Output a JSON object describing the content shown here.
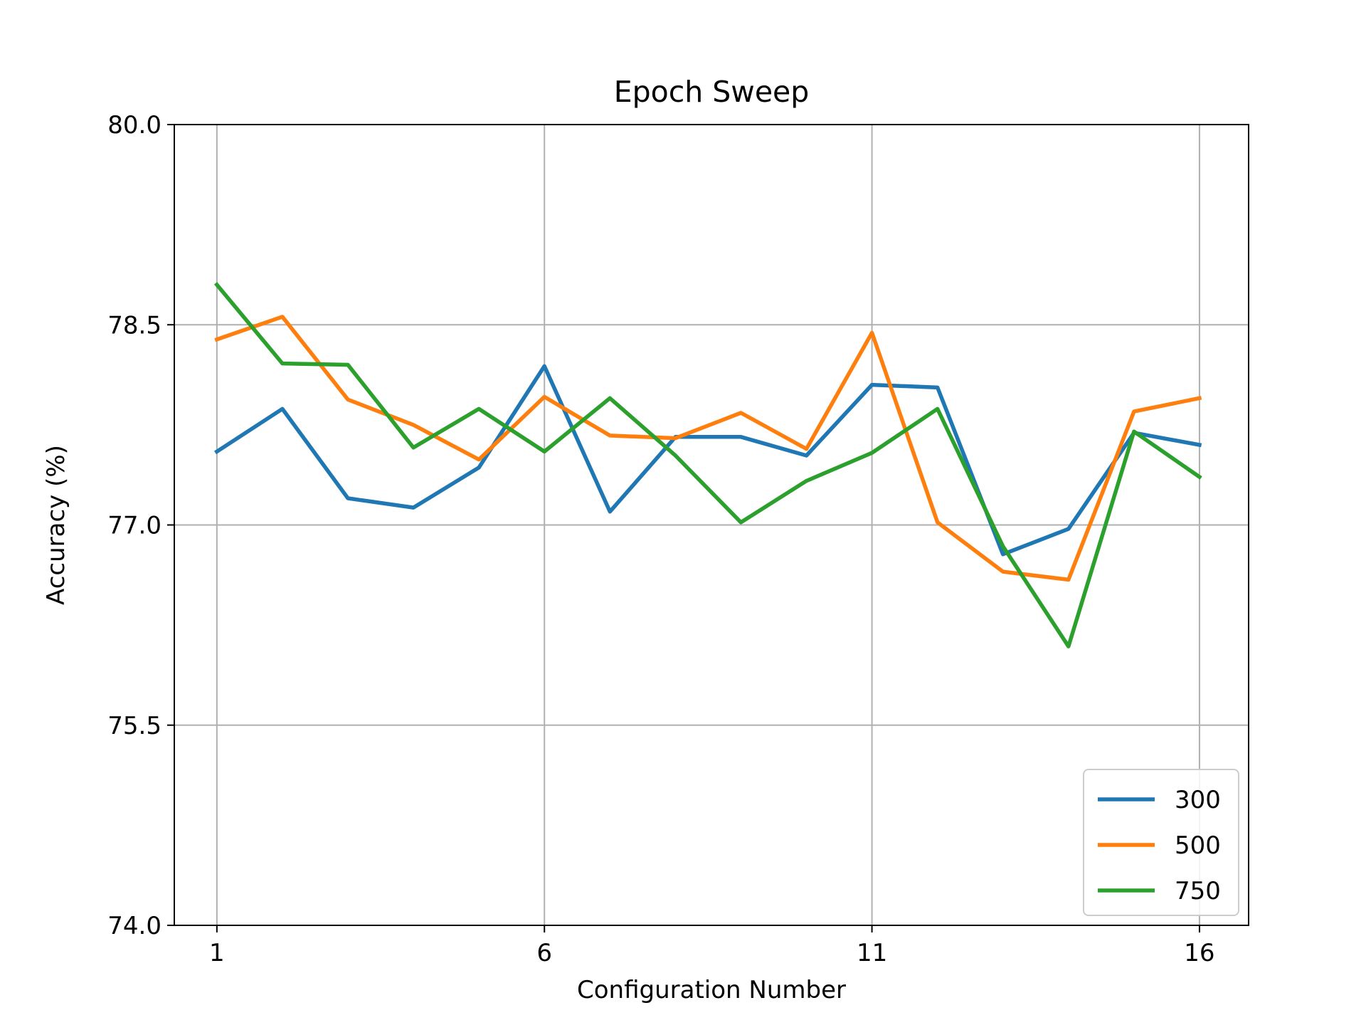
{
  "chart_data": {
    "type": "line",
    "title": "Epoch Sweep",
    "xlabel": "Configuration Number",
    "ylabel": "Accuracy (%)",
    "x": [
      1,
      2,
      3,
      4,
      5,
      6,
      7,
      8,
      9,
      10,
      11,
      12,
      13,
      14,
      15,
      16
    ],
    "xlim": [
      0.35,
      16.75
    ],
    "ylim": [
      74.0,
      80.0
    ],
    "xticks": [
      1,
      6,
      11,
      16
    ],
    "yticks": [
      74.0,
      75.5,
      77.0,
      78.5,
      80.0
    ],
    "xtick_labels": [
      "1",
      "6",
      "11",
      "16"
    ],
    "ytick_labels": [
      "74.0",
      "75.5",
      "77.0",
      "78.5",
      "80.0"
    ],
    "grid": true,
    "legend_position": "lower-right",
    "series": [
      {
        "name": "300",
        "color": "#1f77b4",
        "values": [
          77.55,
          77.87,
          77.2,
          77.13,
          77.43,
          78.19,
          77.1,
          77.66,
          77.66,
          77.52,
          78.05,
          78.03,
          76.78,
          76.97,
          77.69,
          77.6
        ]
      },
      {
        "name": "500",
        "color": "#ff7f0e",
        "values": [
          78.39,
          78.56,
          77.94,
          77.75,
          77.49,
          77.96,
          77.67,
          77.65,
          77.84,
          77.57,
          78.44,
          77.02,
          76.65,
          76.59,
          77.85,
          77.95
        ]
      },
      {
        "name": "750",
        "color": "#2ca02c",
        "values": [
          78.8,
          78.21,
          78.2,
          77.58,
          77.87,
          77.55,
          77.95,
          77.52,
          77.02,
          77.33,
          77.54,
          77.87,
          76.84,
          76.09,
          77.7,
          77.36
        ]
      }
    ]
  }
}
